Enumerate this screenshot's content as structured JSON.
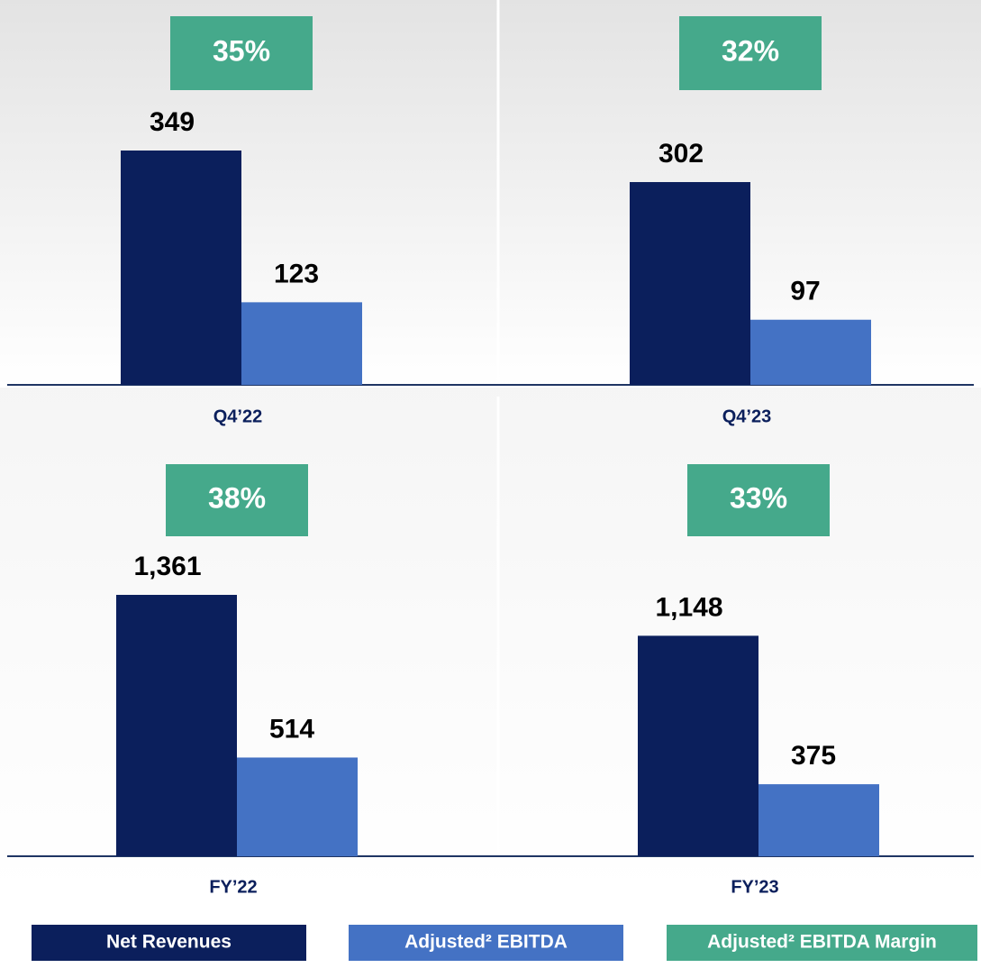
{
  "chart_data": [
    {
      "type": "bar",
      "categories": [
        "Q4’22",
        "Q4’23"
      ],
      "series": [
        {
          "name": "Net Revenues",
          "color": "#0b1f5c",
          "values": [
            349,
            302
          ]
        },
        {
          "name": "Adjusted² EBITDA",
          "color": "#4472c4",
          "values": [
            123,
            97
          ]
        },
        {
          "name": "Adjusted² EBITDA Margin",
          "color": "#45a98b",
          "values": [
            35,
            32
          ],
          "value_labels": [
            "35%",
            "32%"
          ]
        }
      ]
    },
    {
      "type": "bar",
      "categories": [
        "FY’22",
        "FY’23"
      ],
      "series": [
        {
          "color": "#0b1f5c",
          "values": [
            1361,
            1148
          ],
          "value_labels": [
            "1,361",
            "1,148"
          ]
        },
        {
          "color": "#4472c4",
          "values": [
            514,
            375
          ]
        },
        {
          "color": "#45a98b",
          "values": [
            38,
            33
          ],
          "value_labels": [
            "38%",
            "33%"
          ]
        }
      ]
    }
  ]
}
